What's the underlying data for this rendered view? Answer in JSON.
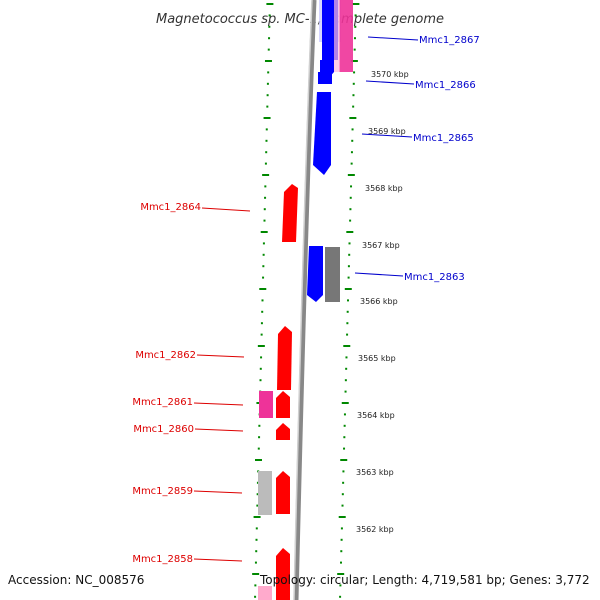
{
  "title": "Magnetococcus sp. MC-1, complete genome",
  "accession": "Accession: NC_008576",
  "topology": "Topology: circular; Length: 4,719,581 bp; Genes: 3,772",
  "genes_right": [
    {
      "name": "Mmc1_2867",
      "color": "#0000cc"
    },
    {
      "name": "Mmc1_2866",
      "color": "#0000cc"
    },
    {
      "name": "Mmc1_2865",
      "color": "#0000cc"
    },
    {
      "name": "Mmc1_2863",
      "color": "#0000cc"
    }
  ],
  "genes_left": [
    {
      "name": "Mmc1_2864",
      "color": "#dd0000"
    },
    {
      "name": "Mmc1_2862",
      "color": "#dd0000"
    },
    {
      "name": "Mmc1_2861",
      "color": "#dd0000"
    },
    {
      "name": "Mmc1_2860",
      "color": "#dd0000"
    },
    {
      "name": "Mmc1_2859",
      "color": "#dd0000"
    },
    {
      "name": "Mmc1_2858",
      "color": "#dd0000"
    }
  ],
  "kbp_ticks": [
    "3570 kbp",
    "3569 kbp",
    "3568 kbp",
    "3567 kbp",
    "3566 kbp",
    "3565 kbp",
    "3564 kbp",
    "3563 kbp",
    "3562 kbp"
  ],
  "colors": {
    "forward_cds": "#ff0000",
    "reverse_cds": "#0000ff",
    "pink_feature": "#ee3399",
    "gray_feature": "#777777",
    "tick_green": "#008800",
    "backbone": "#888888"
  }
}
